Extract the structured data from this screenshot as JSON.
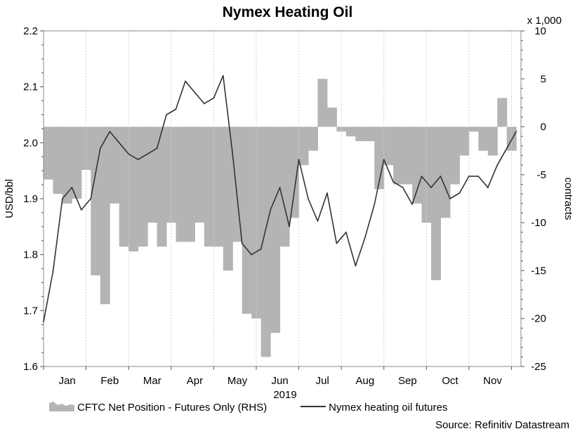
{
  "chart_data": {
    "type": "line+area",
    "title": "Nymex Heating Oil",
    "xlabel": "2019",
    "ylabel": "USD/bbl",
    "y2label": "contracts",
    "y2_multiplier_label": "x 1,000",
    "ylim": [
      1.6,
      2.2
    ],
    "y2lim": [
      -25,
      10
    ],
    "yticks": [
      "1.6",
      "1.7",
      "1.8",
      "1.9",
      "2.0",
      "2.1",
      "2.2"
    ],
    "y2ticks": [
      "-25",
      "-20",
      "-15",
      "-10",
      "-5",
      "0",
      "5",
      "10"
    ],
    "xlim": [
      0,
      50.5
    ],
    "months": [
      {
        "label": "Jan",
        "week": 2.5
      },
      {
        "label": "Feb",
        "week": 7
      },
      {
        "label": "Mar",
        "week": 11.5
      },
      {
        "label": "Apr",
        "week": 16
      },
      {
        "label": "May",
        "week": 20.5
      },
      {
        "label": "Jun",
        "week": 25
      },
      {
        "label": "Jul",
        "week": 29.5
      },
      {
        "label": "Aug",
        "week": 34
      },
      {
        "label": "Sep",
        "week": 38.5
      },
      {
        "label": "Oct",
        "week": 43
      },
      {
        "label": "Nov",
        "week": 47.5
      }
    ],
    "month_boundaries": [
      0,
      4.5,
      9,
      13.5,
      18,
      22.5,
      27,
      31.5,
      36,
      40.5,
      45,
      49.5
    ],
    "series": [
      {
        "name": "CFTC Net Position - Futures Only (RHS)",
        "axis": "right",
        "kind": "step-area",
        "color": "#b4b4b4",
        "x": [
          0,
          1,
          2,
          3,
          4,
          5,
          6,
          7,
          8,
          9,
          10,
          11,
          12,
          13,
          14,
          15,
          16,
          17,
          18,
          19,
          20,
          21,
          22,
          23,
          24,
          25,
          26,
          27,
          28,
          29,
          30,
          31,
          32,
          33,
          34,
          35,
          36,
          37,
          38,
          39,
          40,
          41,
          42,
          43,
          44,
          45,
          46,
          47,
          48,
          49,
          50
        ],
        "values": [
          -5.5,
          -7,
          -8,
          -7.5,
          -4.5,
          -15.5,
          -18.5,
          -8,
          -12.5,
          -13,
          -12.5,
          -10,
          -12.5,
          -10,
          -12,
          -12,
          -10,
          -12.5,
          -12.5,
          -15,
          -12,
          -19.5,
          -20,
          -24,
          -21.5,
          -12.5,
          -9.5,
          -4,
          -2.5,
          5,
          2,
          -0.5,
          -1,
          -1.5,
          -1.5,
          -6.5,
          -4,
          -6,
          -6,
          -8,
          -10,
          -16,
          -9.5,
          -6,
          -3,
          -0.5,
          -2.5,
          -3,
          3,
          -2.5,
          0
        ]
      },
      {
        "name": "Nymex heating oil futures",
        "axis": "left",
        "kind": "line",
        "color": "#333333",
        "x": [
          0,
          1,
          2,
          3,
          4,
          5,
          6,
          7,
          8,
          9,
          10,
          11,
          12,
          13,
          14,
          15,
          16,
          17,
          18,
          19,
          20,
          21,
          22,
          23,
          24,
          25,
          26,
          27,
          28,
          29,
          30,
          31,
          32,
          33,
          34,
          35,
          36,
          37,
          38,
          39,
          40,
          41,
          42,
          43,
          44,
          45,
          46,
          47,
          48,
          49,
          50
        ],
        "values": [
          1.68,
          1.77,
          1.9,
          1.92,
          1.88,
          1.9,
          1.99,
          2.02,
          2.0,
          1.98,
          1.97,
          1.98,
          1.99,
          2.05,
          2.06,
          2.11,
          2.09,
          2.07,
          2.08,
          2.12,
          1.98,
          1.82,
          1.8,
          1.81,
          1.88,
          1.92,
          1.85,
          1.97,
          1.9,
          1.86,
          1.91,
          1.82,
          1.84,
          1.78,
          1.83,
          1.89,
          1.97,
          1.93,
          1.92,
          1.89,
          1.94,
          1.92,
          1.94,
          1.9,
          1.91,
          1.94,
          1.94,
          1.92,
          1.96,
          1.99,
          2.02
        ]
      }
    ],
    "legend_position": "bottom"
  },
  "source": "Source: Refinitiv Datastream"
}
